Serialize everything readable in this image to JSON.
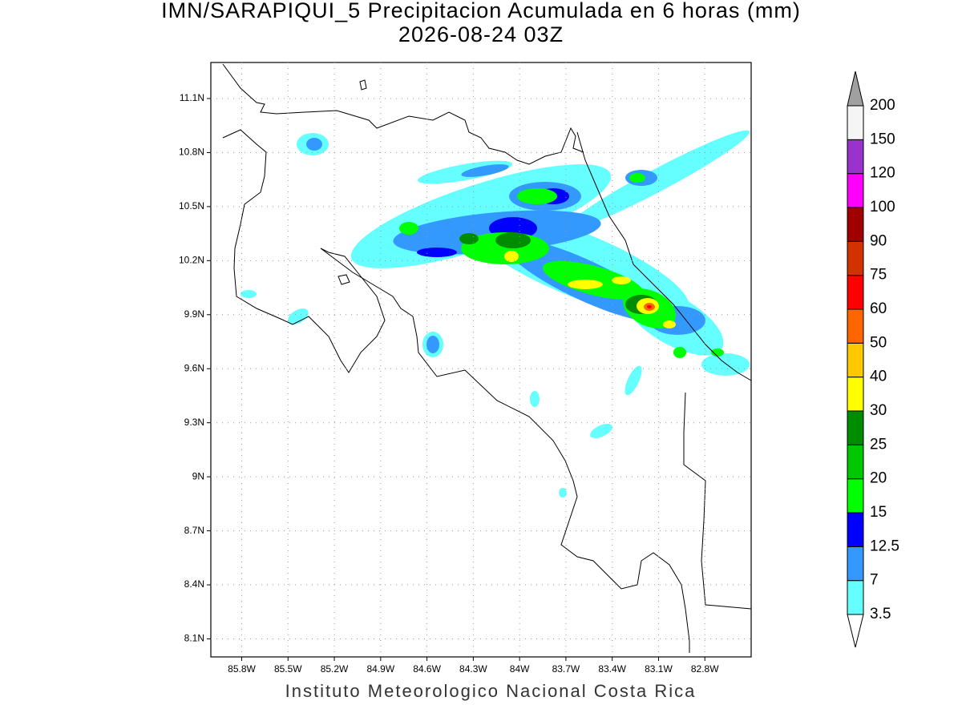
{
  "title": "IMN/SARAPIQUI_5 Precipitacion Acumulada en 6 horas (mm)",
  "subtitle": "2026-08-24 03Z",
  "footer": "Instituto Meteorologico Nacional Costa Rica",
  "map": {
    "xlim": [
      -86.0,
      -82.5
    ],
    "ylim": [
      8.0,
      11.3
    ],
    "grid": true,
    "xticks": [
      {
        "value": -85.8,
        "label": "85.8W"
      },
      {
        "value": -85.5,
        "label": "85.5W"
      },
      {
        "value": -85.2,
        "label": "85.2W"
      },
      {
        "value": -84.9,
        "label": "84.9W"
      },
      {
        "value": -84.6,
        "label": "84.6W"
      },
      {
        "value": -84.3,
        "label": "84.3W"
      },
      {
        "value": -84.0,
        "label": "84W"
      },
      {
        "value": -83.7,
        "label": "83.7W"
      },
      {
        "value": -83.4,
        "label": "83.4W"
      },
      {
        "value": -83.1,
        "label": "83.1W"
      },
      {
        "value": -82.8,
        "label": "82.8W"
      }
    ],
    "yticks": [
      {
        "value": 11.1,
        "label": "11.1N"
      },
      {
        "value": 10.8,
        "label": "10.8N"
      },
      {
        "value": 10.5,
        "label": "10.5N"
      },
      {
        "value": 10.2,
        "label": "10.2N"
      },
      {
        "value": 9.9,
        "label": "9.9N"
      },
      {
        "value": 9.6,
        "label": "9.6N"
      },
      {
        "value": 9.3,
        "label": "9.3N"
      },
      {
        "value": 9.0,
        "label": "9N"
      },
      {
        "value": 8.7,
        "label": "8.7N"
      },
      {
        "value": 8.4,
        "label": "8.4N"
      },
      {
        "value": 8.1,
        "label": "8.1N"
      }
    ]
  },
  "colorbar": {
    "levels": [
      3.5,
      7,
      12.5,
      15,
      20,
      25,
      30,
      40,
      50,
      60,
      75,
      90,
      100,
      120,
      150,
      200
    ],
    "colors": [
      "#ffffff",
      "#66ffff",
      "#3399ff",
      "#0000ff",
      "#00ff00",
      "#00c800",
      "#008c00",
      "#ffff00",
      "#ffc800",
      "#ff6600",
      "#ff0000",
      "#d23200",
      "#a00000",
      "#ff00ff",
      "#9933cc",
      "#f5f5f5",
      "#a0a0a0"
    ]
  }
}
